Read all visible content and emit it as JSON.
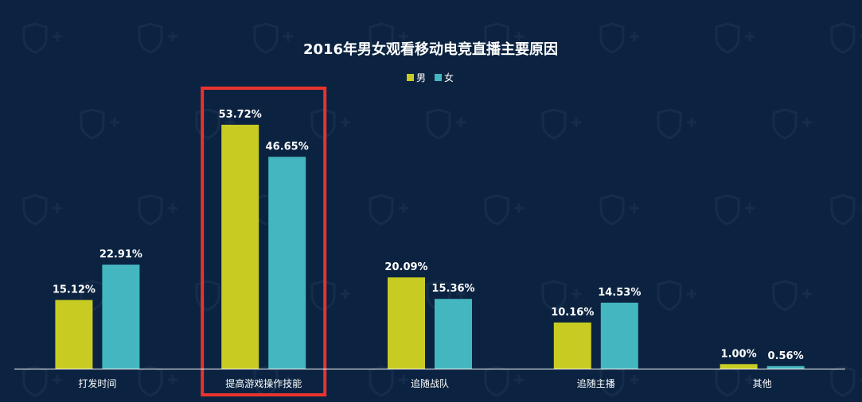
{
  "chart_data": {
    "type": "bar",
    "title": "2016年男女观看移动电竞直播主要原因",
    "categories": [
      "打发时间",
      "提高游戏操作技能",
      "追随战队",
      "追随主播",
      "其他"
    ],
    "series": [
      {
        "name": "男",
        "values": [
          15.12,
          53.72,
          20.09,
          10.16,
          1.0
        ],
        "labels": [
          "15.12%",
          "53.72%",
          "20.09%",
          "10.16%",
          "1.00%"
        ]
      },
      {
        "name": "女",
        "values": [
          22.91,
          46.65,
          15.36,
          14.53,
          0.56
        ],
        "labels": [
          "22.91%",
          "46.65%",
          "15.36%",
          "14.53%",
          "0.56%"
        ]
      }
    ],
    "ylim": [
      0,
      60
    ],
    "grid": false,
    "legend_position": "top-center",
    "highlighted_category": "提高游戏操作技能"
  },
  "colors": {
    "background": "#0b2340",
    "male": "#c8cc22",
    "female": "#44b6c0",
    "highlight_border": "#e8332f",
    "text": "#ffffff",
    "axis": "#ffffff"
  }
}
